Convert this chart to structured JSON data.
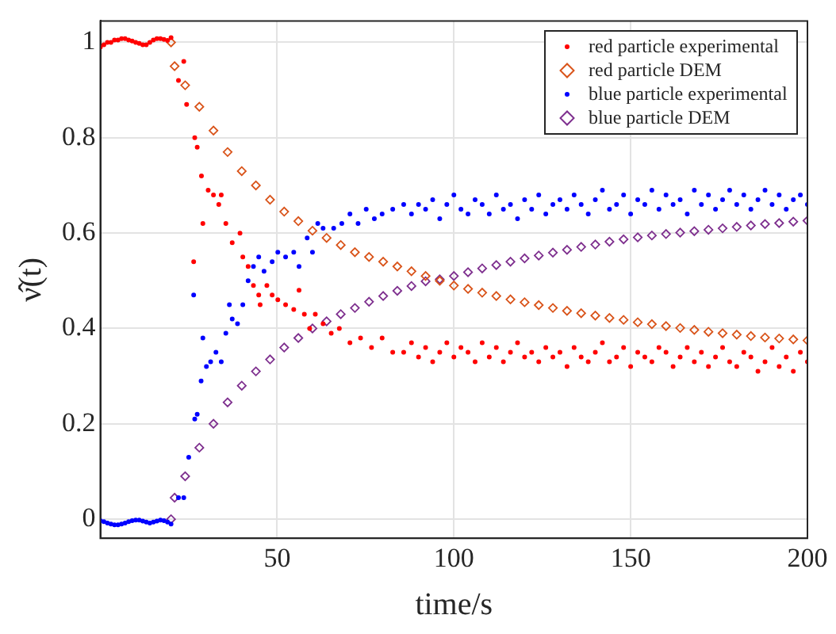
{
  "chart_data": {
    "type": "scatter",
    "xlabel": "time/s",
    "ylabel": "ν̂(t)",
    "xlim": [
      0,
      200
    ],
    "xticks": [
      50,
      100,
      150,
      200
    ],
    "ylim": [
      -0.04,
      1.045
    ],
    "yticks": [
      0,
      0.2,
      0.4,
      0.6,
      0.8,
      1
    ],
    "grid": true,
    "legend": "top right",
    "series": [
      {
        "name": "red particle experimental",
        "color": "#ff0000",
        "marker": "circle",
        "x": [
          0,
          1,
          2,
          3,
          4,
          5,
          6,
          7,
          8,
          9,
          10,
          11,
          12,
          13,
          14,
          15,
          16,
          17,
          18,
          19,
          20,
          22.1,
          23.6,
          24.4,
          26.4,
          26.7,
          27.4,
          28.6,
          29,
          30.5,
          32,
          33.5,
          34.2,
          35.5,
          37.3,
          39.5,
          40.3,
          41.8,
          43.3,
          44.8,
          45.2,
          47.1,
          48.6,
          50.2,
          52.4,
          54.7,
          56.2,
          57.7,
          59.2,
          60.8,
          63,
          65.3,
          67.6,
          70.6,
          73.6,
          76.7,
          79.7,
          82.7,
          85.8,
          88,
          90,
          92,
          94,
          96,
          98,
          100,
          102,
          104,
          106,
          108,
          110,
          112,
          114,
          116,
          118,
          120,
          122,
          124,
          126,
          128,
          130,
          132,
          134,
          136,
          138,
          140,
          142,
          144,
          146,
          148,
          150,
          152,
          154,
          156,
          158,
          160,
          162,
          164,
          166,
          168,
          170,
          172,
          174,
          176,
          178,
          180,
          182,
          184,
          186,
          188,
          190,
          192,
          194,
          196,
          198,
          200
        ],
        "values": [
          0.99,
          0.995,
          1,
          1,
          1.005,
          1.005,
          1.008,
          1.008,
          1.005,
          1.003,
          1,
          0.998,
          0.995,
          0.995,
          1,
          1.005,
          1.008,
          1.008,
          1.006,
          1.004,
          1.01,
          0.92,
          0.96,
          0.87,
          0.54,
          0.8,
          0.78,
          0.72,
          0.62,
          0.69,
          0.68,
          0.66,
          0.68,
          0.62,
          0.58,
          0.6,
          0.55,
          0.53,
          0.49,
          0.47,
          0.45,
          0.49,
          0.47,
          0.46,
          0.45,
          0.44,
          0.48,
          0.43,
          0.4,
          0.43,
          0.41,
          0.39,
          0.4,
          0.37,
          0.38,
          0.36,
          0.38,
          0.35,
          0.35,
          0.37,
          0.34,
          0.36,
          0.33,
          0.35,
          0.37,
          0.34,
          0.36,
          0.35,
          0.33,
          0.37,
          0.34,
          0.36,
          0.33,
          0.35,
          0.37,
          0.34,
          0.35,
          0.33,
          0.36,
          0.34,
          0.35,
          0.32,
          0.36,
          0.34,
          0.33,
          0.35,
          0.37,
          0.33,
          0.34,
          0.36,
          0.32,
          0.35,
          0.34,
          0.33,
          0.36,
          0.35,
          0.32,
          0.34,
          0.36,
          0.33,
          0.35,
          0.32,
          0.34,
          0.36,
          0.33,
          0.32,
          0.35,
          0.34,
          0.31,
          0.33,
          0.36,
          0.32,
          0.34,
          0.31,
          0.35,
          0.33
        ]
      },
      {
        "name": "red particle DEM",
        "color": "#d95319",
        "marker": "diamond",
        "x": [
          20,
          21,
          24,
          28,
          32,
          36,
          40,
          44,
          48,
          52,
          56,
          60,
          64,
          68,
          72,
          76,
          80,
          84,
          88,
          92,
          96,
          100,
          104,
          108,
          112,
          116,
          120,
          124,
          128,
          132,
          136,
          140,
          144,
          148,
          152,
          156,
          160,
          164,
          168,
          172,
          176,
          180,
          184,
          188,
          192,
          196,
          200
        ],
        "values": [
          1,
          0.95,
          0.91,
          0.865,
          0.815,
          0.77,
          0.73,
          0.7,
          0.67,
          0.645,
          0.625,
          0.605,
          0.59,
          0.575,
          0.56,
          0.55,
          0.54,
          0.53,
          0.52,
          0.51,
          0.5,
          0.49,
          0.483,
          0.475,
          0.468,
          0.461,
          0.455,
          0.449,
          0.443,
          0.437,
          0.432,
          0.427,
          0.422,
          0.418,
          0.413,
          0.409,
          0.405,
          0.401,
          0.397,
          0.393,
          0.39,
          0.387,
          0.384,
          0.381,
          0.379,
          0.377,
          0.375
        ]
      },
      {
        "name": "blue particle experimental",
        "color": "#0000ff",
        "marker": "circle",
        "x": [
          0,
          1,
          2,
          3,
          4,
          5,
          6,
          7,
          8,
          9,
          10,
          11,
          12,
          13,
          14,
          15,
          16,
          17,
          18,
          19,
          20,
          22.1,
          23.6,
          25,
          26.4,
          26.7,
          27.4,
          28.5,
          29,
          30,
          31.2,
          32.7,
          34.2,
          35.5,
          36.5,
          37.3,
          38.8,
          40.3,
          41.8,
          43.3,
          44.8,
          46.3,
          48.6,
          50.2,
          52.4,
          54.7,
          56.2,
          58.5,
          60,
          61.5,
          63,
          66,
          68.3,
          70.6,
          72.9,
          75.2,
          77.5,
          79.7,
          82.7,
          85.8,
          88,
          90,
          92,
          94,
          96,
          98,
          100,
          102,
          104,
          106,
          108,
          110,
          112,
          114,
          116,
          118,
          120,
          122,
          124,
          126,
          128,
          130,
          132,
          134,
          136,
          138,
          140,
          142,
          144,
          146,
          148,
          150,
          152,
          154,
          156,
          158,
          160,
          162,
          164,
          166,
          168,
          170,
          172,
          174,
          176,
          178,
          180,
          182,
          184,
          186,
          188,
          190,
          192,
          194,
          196,
          198,
          200
        ],
        "values": [
          -0.003,
          -0.005,
          -0.008,
          -0.01,
          -0.012,
          -0.012,
          -0.01,
          -0.008,
          -0.005,
          -0.003,
          -0.002,
          -0.002,
          -0.004,
          -0.006,
          -0.008,
          -0.006,
          -0.004,
          -0.002,
          -0.003,
          -0.006,
          -0.01,
          0.045,
          0.045,
          0.13,
          0.47,
          0.21,
          0.22,
          0.29,
          0.38,
          0.32,
          0.33,
          0.35,
          0.33,
          0.39,
          0.45,
          0.42,
          0.41,
          0.45,
          0.5,
          0.53,
          0.55,
          0.52,
          0.54,
          0.56,
          0.55,
          0.56,
          0.53,
          0.59,
          0.56,
          0.62,
          0.61,
          0.61,
          0.62,
          0.64,
          0.62,
          0.65,
          0.63,
          0.64,
          0.65,
          0.66,
          0.64,
          0.66,
          0.65,
          0.67,
          0.63,
          0.66,
          0.68,
          0.65,
          0.64,
          0.67,
          0.66,
          0.64,
          0.68,
          0.65,
          0.66,
          0.63,
          0.67,
          0.65,
          0.68,
          0.64,
          0.66,
          0.67,
          0.65,
          0.68,
          0.66,
          0.64,
          0.67,
          0.69,
          0.65,
          0.66,
          0.68,
          0.64,
          0.67,
          0.66,
          0.69,
          0.65,
          0.68,
          0.66,
          0.67,
          0.64,
          0.69,
          0.66,
          0.68,
          0.65,
          0.67,
          0.69,
          0.66,
          0.68,
          0.65,
          0.67,
          0.69,
          0.66,
          0.68,
          0.65,
          0.67,
          0.68,
          0.66
        ]
      },
      {
        "name": "blue particle DEM",
        "color": "#7e2f8e",
        "marker": "diamond",
        "x": [
          20,
          21,
          24,
          28,
          32,
          36,
          40,
          44,
          48,
          52,
          56,
          60,
          64,
          68,
          72,
          76,
          80,
          84,
          88,
          92,
          96,
          100,
          104,
          108,
          112,
          116,
          120,
          124,
          128,
          132,
          136,
          140,
          144,
          148,
          152,
          156,
          160,
          164,
          168,
          172,
          176,
          180,
          184,
          188,
          192,
          196,
          200
        ],
        "values": [
          0,
          0.045,
          0.09,
          0.15,
          0.2,
          0.245,
          0.28,
          0.31,
          0.335,
          0.36,
          0.38,
          0.4,
          0.415,
          0.43,
          0.443,
          0.456,
          0.468,
          0.479,
          0.489,
          0.499,
          0.503,
          0.51,
          0.518,
          0.526,
          0.533,
          0.54,
          0.547,
          0.553,
          0.559,
          0.565,
          0.571,
          0.576,
          0.582,
          0.587,
          0.591,
          0.595,
          0.598,
          0.601,
          0.604,
          0.607,
          0.61,
          0.613,
          0.616,
          0.619,
          0.621,
          0.624,
          0.626
        ]
      }
    ]
  }
}
